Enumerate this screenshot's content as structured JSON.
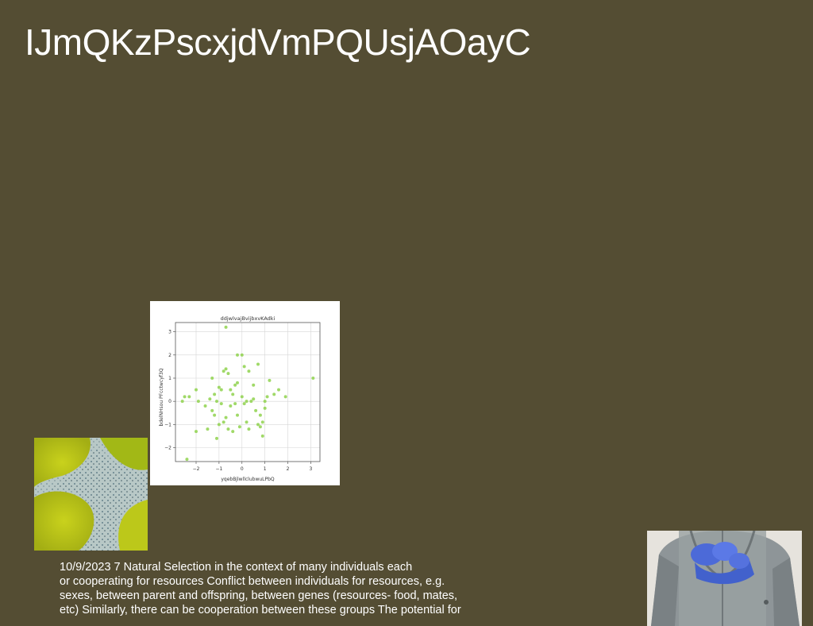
{
  "slide": {
    "title": "IJmQKzPscxjdVmPQUsjAOayC",
    "body_lines": [
      "10/9/2023 7 Natural Selection in the context of many individuals each",
      "or cooperating for resources Conflict between individuals for resources, e.g.",
      "sexes, between parent and offspring, between genes (resources- food, mates,",
      "etc) Similarly, there can be cooperation between these groups The potential for"
    ]
  },
  "chart_data": {
    "type": "scatter",
    "title": "ddjwlvajBvijbxvKAdki",
    "xlabel": "yqebBjlwllclubwuLPbQ",
    "ylabel": "bdelNHsou PFcctwcyf3Q",
    "xlim": [
      -2.9,
      3.4
    ],
    "ylim": [
      -2.6,
      3.4
    ],
    "xticks": [
      -2,
      -1,
      0,
      1,
      2,
      3
    ],
    "yticks": [
      -2,
      -1,
      0,
      1,
      2,
      3
    ],
    "xtick_labels": [
      "−2",
      "−1",
      "0",
      "1",
      "2",
      "3"
    ],
    "ytick_labels": [
      "−2",
      "−1",
      "0",
      "1",
      "2",
      "3"
    ],
    "grid": true,
    "color": "#8fd24e",
    "points": [
      [
        -2.4,
        -2.5
      ],
      [
        -0.7,
        3.2
      ],
      [
        3.1,
        1.0
      ],
      [
        -2.5,
        0.2
      ],
      [
        -2.3,
        0.2
      ],
      [
        -2.6,
        0.0
      ],
      [
        -2.0,
        0.5
      ],
      [
        -1.9,
        0.0
      ],
      [
        -1.6,
        -0.2
      ],
      [
        -1.5,
        -1.2
      ],
      [
        -2.0,
        -1.3
      ],
      [
        -1.2,
        -0.6
      ],
      [
        -1.1,
        -1.6
      ],
      [
        -1.0,
        0.6
      ],
      [
        -0.9,
        0.5
      ],
      [
        -0.8,
        1.3
      ],
      [
        -0.7,
        1.4
      ],
      [
        -0.6,
        1.2
      ],
      [
        -0.5,
        0.5
      ],
      [
        -0.4,
        0.3
      ],
      [
        -0.3,
        0.7
      ],
      [
        -0.2,
        0.8
      ],
      [
        -0.2,
        2.0
      ],
      [
        0.0,
        2.0
      ],
      [
        0.1,
        1.5
      ],
      [
        0.3,
        1.3
      ],
      [
        0.7,
        1.6
      ],
      [
        0.5,
        0.7
      ],
      [
        -1.3,
        1.0
      ],
      [
        -1.1,
        0.0
      ],
      [
        -0.9,
        -0.1
      ],
      [
        -0.8,
        -0.9
      ],
      [
        -0.7,
        -0.7
      ],
      [
        -0.6,
        -1.2
      ],
      [
        -0.5,
        -0.2
      ],
      [
        -0.4,
        -1.3
      ],
      [
        -0.3,
        -0.1
      ],
      [
        -0.2,
        -0.6
      ],
      [
        -0.1,
        -1.1
      ],
      [
        0.0,
        0.2
      ],
      [
        0.1,
        -0.1
      ],
      [
        0.2,
        -0.9
      ],
      [
        0.2,
        0.0
      ],
      [
        0.3,
        -1.2
      ],
      [
        0.4,
        0.0
      ],
      [
        0.5,
        0.1
      ],
      [
        0.6,
        -0.4
      ],
      [
        0.7,
        -1.0
      ],
      [
        0.8,
        -0.6
      ],
      [
        0.9,
        -0.9
      ],
      [
        0.9,
        -1.5
      ],
      [
        1.0,
        -0.3
      ],
      [
        1.1,
        0.2
      ],
      [
        1.2,
        0.9
      ],
      [
        1.4,
        0.3
      ],
      [
        1.6,
        0.5
      ],
      [
        1.9,
        0.2
      ],
      [
        0.8,
        -1.1
      ],
      [
        1.0,
        0.0
      ],
      [
        -1.0,
        -1.0
      ],
      [
        -1.4,
        0.1
      ],
      [
        -1.2,
        0.3
      ],
      [
        -1.3,
        -0.4
      ]
    ]
  },
  "images": {
    "algae": "green algae micrograph",
    "person": "person in grey jacket with blue gloves"
  }
}
